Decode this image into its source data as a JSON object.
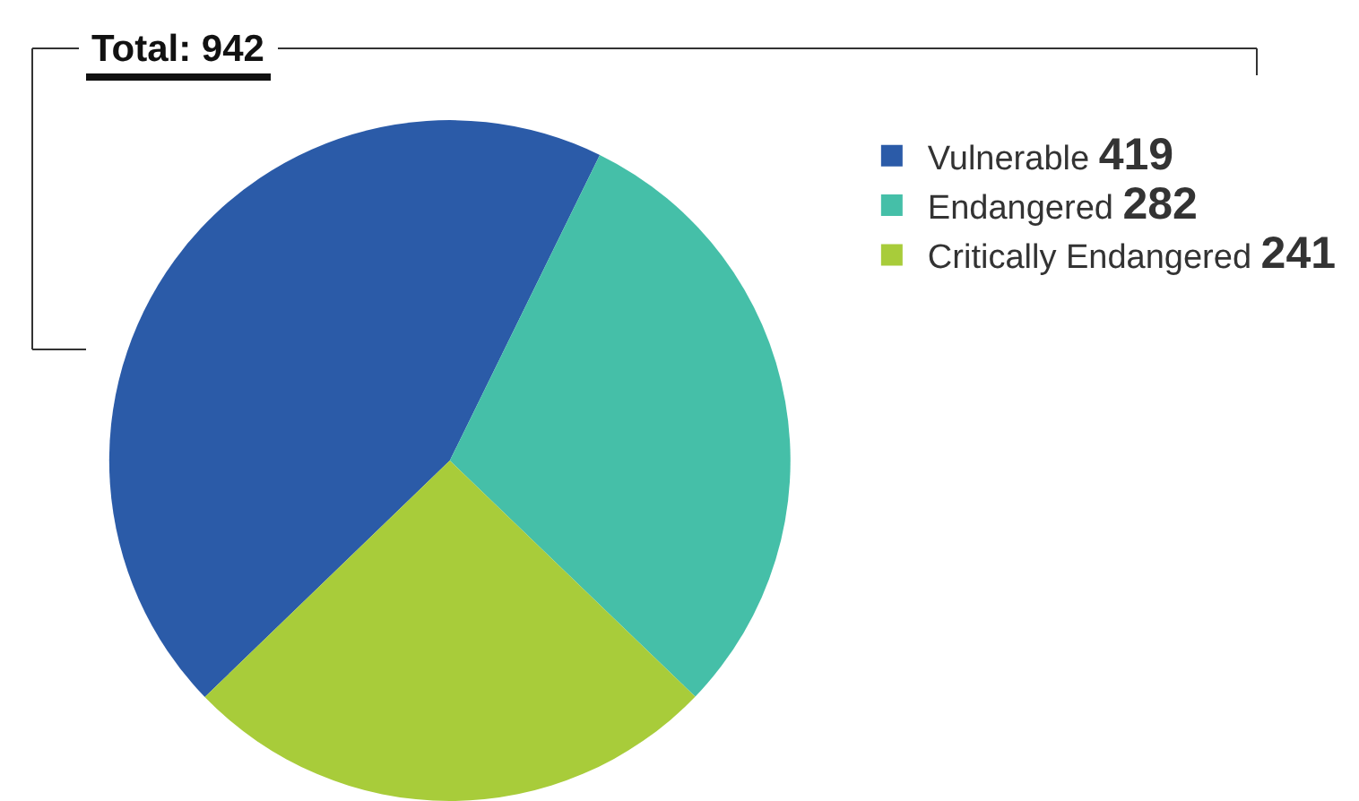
{
  "chart_data": {
    "type": "pie",
    "title": "Total: 942",
    "categories": [
      "Vulnerable",
      "Endangered",
      "Critically Endangered"
    ],
    "values": [
      419,
      282,
      241
    ],
    "colors": [
      "#2b5ba8",
      "#45bfa8",
      "#a8cc3a"
    ],
    "legend": "top right",
    "data_labels": true
  }
}
